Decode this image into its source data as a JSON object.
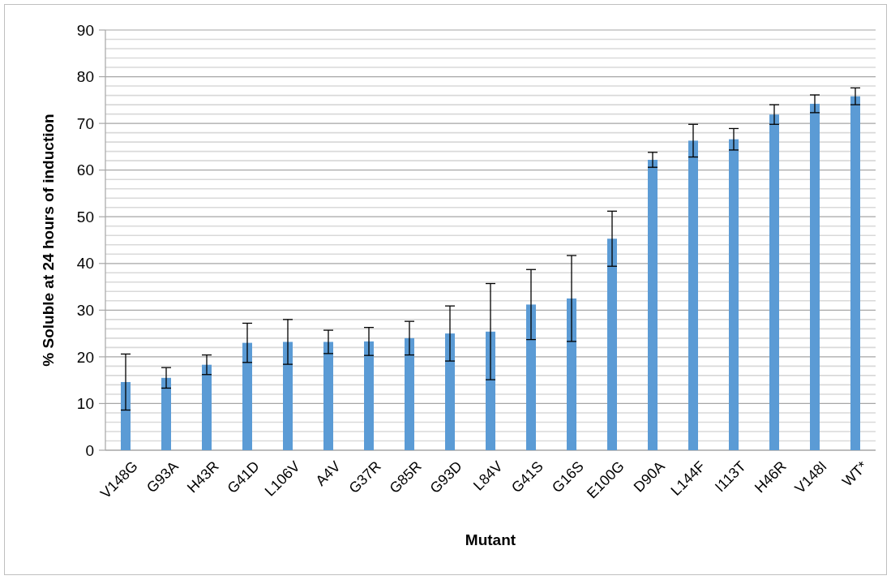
{
  "chart_data": {
    "type": "bar",
    "xlabel": "Mutant",
    "ylabel": "% Soluble at 24 hours of induction",
    "categories": [
      "V148G",
      "G93A",
      "H43R",
      "G41D",
      "L106V",
      "A4V",
      "G37R",
      "G85R",
      "G93D",
      "L84V",
      "G41S",
      "G16S",
      "E100G",
      "D90A",
      "L144F",
      "I113T",
      "H46R",
      "V148I",
      "WT*"
    ],
    "values": [
      14.6,
      15.5,
      18.3,
      23.0,
      23.2,
      23.2,
      23.3,
      24.0,
      25.0,
      25.4,
      31.2,
      32.5,
      45.3,
      62.2,
      66.3,
      66.6,
      71.9,
      74.2,
      75.8
    ],
    "errors": [
      6.0,
      2.2,
      2.1,
      4.2,
      4.8,
      2.5,
      3.0,
      3.6,
      5.9,
      10.3,
      7.5,
      9.2,
      5.9,
      1.6,
      3.5,
      2.3,
      2.1,
      1.9,
      1.8
    ],
    "color": "#5b9bd5",
    "ylim": [
      0,
      90
    ],
    "yticks": [
      0,
      {
        "value": 2,
        "label": null
      },
      {
        "value": 4,
        "label": null
      },
      {
        "value": 6,
        "label": null
      },
      {
        "value": 8,
        "label": null
      },
      10,
      {
        "value": 12,
        "label": null
      },
      {
        "value": 14,
        "label": null
      },
      {
        "value": 16,
        "label": null
      },
      {
        "value": 18,
        "label": null
      },
      20,
      {
        "value": 22,
        "label": null
      },
      {
        "value": 24,
        "label": null
      },
      {
        "value": 26,
        "label": null
      },
      {
        "value": 28,
        "label": null
      },
      30,
      {
        "value": 32,
        "label": null
      },
      {
        "value": 34,
        "label": null
      },
      {
        "value": 36,
        "label": null
      },
      {
        "value": 38,
        "label": null
      },
      40,
      {
        "value": 42,
        "label": null
      },
      {
        "value": 44,
        "label": null
      },
      {
        "value": 46,
        "label": null
      },
      {
        "value": 48,
        "label": null
      },
      50,
      {
        "value": 52,
        "label": null
      },
      {
        "value": 54,
        "label": null
      },
      {
        "value": 56,
        "label": null
      },
      {
        "value": 58,
        "label": null
      },
      60,
      {
        "value": 62,
        "label": null
      },
      {
        "value": 64,
        "label": null
      },
      {
        "value": 66,
        "label": null
      },
      {
        "value": 68,
        "label": null
      },
      70,
      {
        "value": 72,
        "label": null
      },
      {
        "value": 74,
        "label": null
      },
      {
        "value": 76,
        "label": null
      },
      {
        "value": 78,
        "label": null
      },
      80,
      {
        "value": 82,
        "label": null
      },
      {
        "value": 84,
        "label": null
      },
      {
        "value": 86,
        "label": null
      },
      {
        "value": 88,
        "label": null
      },
      90
    ],
    "grid": "y"
  }
}
